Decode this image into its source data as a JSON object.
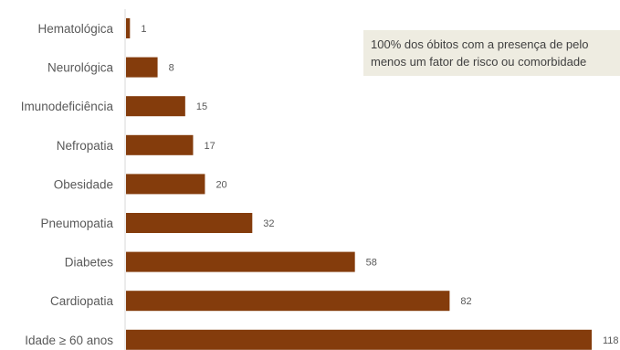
{
  "chart_data": {
    "type": "bar",
    "orientation": "horizontal",
    "categories": [
      "Hematológica",
      "Neurológica",
      "Imunodeficiência",
      "Nefropatia",
      "Obesidade",
      "Pneumopatia",
      "Diabetes",
      "Cardiopatia",
      "Idade ≥ 60 anos"
    ],
    "values": [
      1,
      8,
      15,
      17,
      20,
      32,
      58,
      82,
      118
    ],
    "value_labels": [
      "1",
      "8",
      "15",
      "17",
      "20",
      "32",
      "58",
      "82",
      "118"
    ],
    "title": "",
    "xlabel": "",
    "ylabel": "",
    "xlim": [
      0,
      118
    ],
    "bar_color": "#843c0c",
    "grid": false,
    "legend": "none"
  },
  "annotation": {
    "text": "100% dos óbitos com a presença de pelo\nmenos um fator de risco ou comorbidade",
    "background": "#eeece1"
  }
}
